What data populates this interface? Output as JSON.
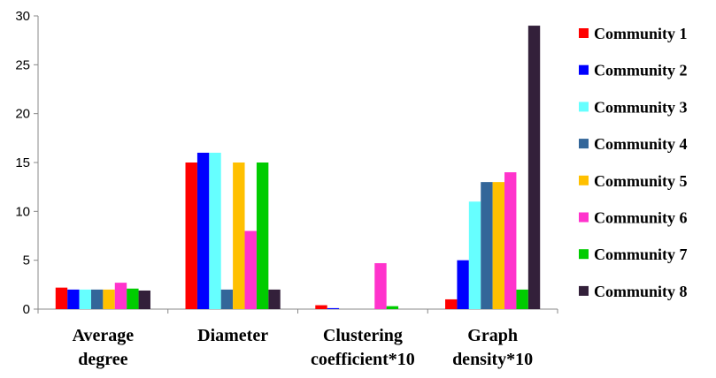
{
  "chart_data": {
    "type": "bar",
    "categories": [
      [
        "Average",
        "degree"
      ],
      [
        "Diameter"
      ],
      [
        "Clustering",
        "coefficient*10"
      ],
      [
        "Graph",
        "density*10"
      ]
    ],
    "series": [
      {
        "name": "Community  1",
        "color": "#ff0000",
        "values": [
          2.2,
          15,
          0.4,
          1
        ]
      },
      {
        "name": "Community  2",
        "color": "#0000ff",
        "values": [
          2.0,
          16,
          0.1,
          5
        ]
      },
      {
        "name": "Community  3",
        "color": "#66ffff",
        "values": [
          2.0,
          16,
          0,
          11
        ]
      },
      {
        "name": "Community  4",
        "color": "#336699",
        "values": [
          2.0,
          2,
          0,
          13
        ]
      },
      {
        "name": "Community  5",
        "color": "#ffc000",
        "values": [
          2.0,
          15,
          0,
          13
        ]
      },
      {
        "name": "Community  6",
        "color": "#ff33cc",
        "values": [
          2.7,
          8,
          4.7,
          14
        ]
      },
      {
        "name": "Community  7",
        "color": "#00cc00",
        "values": [
          2.1,
          15,
          0.3,
          2
        ]
      },
      {
        "name": "Community  8",
        "color": "#33203a",
        "values": [
          1.9,
          2,
          0,
          29
        ]
      }
    ],
    "yticks": [
      0,
      5,
      10,
      15,
      20,
      25,
      30
    ],
    "ylim": [
      0,
      30
    ],
    "grid": false,
    "legend": "right"
  }
}
